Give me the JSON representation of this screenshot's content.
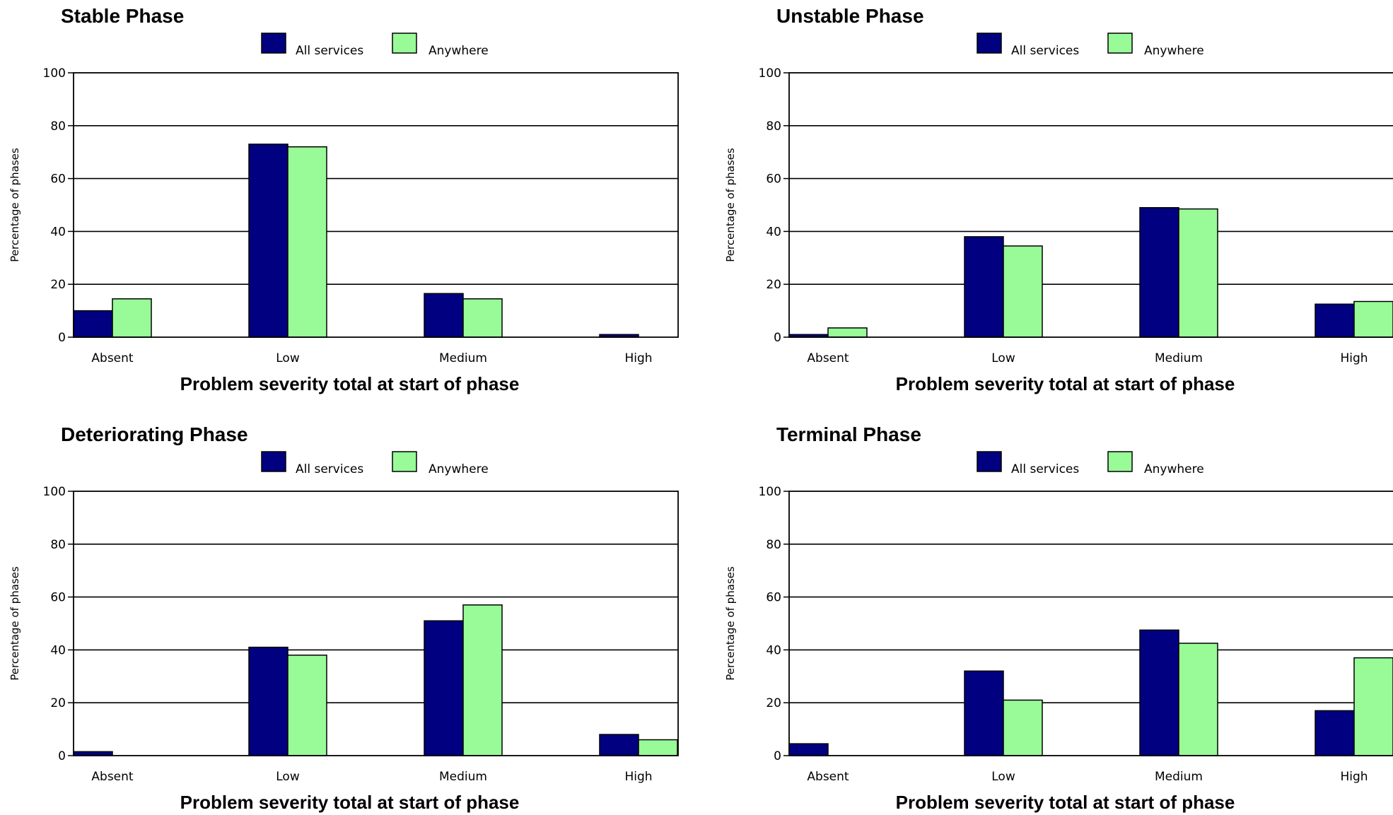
{
  "colors": {
    "all_services": "#000080",
    "anywhere": "#98fb98",
    "gridline": "#000000",
    "bar_outline": "#000000"
  },
  "chart_data": [
    {
      "type": "bar",
      "title": "Stable Phase",
      "xlabel": "Problem severity total at start of phase",
      "ylabel": "Percentage of phases",
      "categories": [
        "Absent",
        "Low",
        "Medium",
        "High"
      ],
      "ylim": [
        0,
        100
      ],
      "yticks": [
        0,
        20,
        40,
        60,
        80,
        100
      ],
      "grid": true,
      "legend_position": "top-center",
      "series": [
        {
          "name": "All services",
          "values": [
            10,
            73,
            16.5,
            1
          ]
        },
        {
          "name": "Anywhere",
          "values": [
            14.5,
            72,
            14.5,
            0
          ]
        }
      ]
    },
    {
      "type": "bar",
      "title": "Unstable Phase",
      "xlabel": "Problem severity total at start of phase",
      "ylabel": "Percentage of phases",
      "categories": [
        "Absent",
        "Low",
        "Medium",
        "High"
      ],
      "ylim": [
        0,
        100
      ],
      "yticks": [
        0,
        20,
        40,
        60,
        80,
        100
      ],
      "grid": true,
      "legend_position": "top-center",
      "series": [
        {
          "name": "All services",
          "values": [
            1,
            38,
            49,
            12.5
          ]
        },
        {
          "name": "Anywhere",
          "values": [
            3.5,
            34.5,
            48.5,
            13.5
          ]
        }
      ]
    },
    {
      "type": "bar",
      "title": "Deteriorating Phase",
      "xlabel": "Problem severity total at start of phase",
      "ylabel": "Percentage of phases",
      "categories": [
        "Absent",
        "Low",
        "Medium",
        "High"
      ],
      "ylim": [
        0,
        100
      ],
      "yticks": [
        0,
        20,
        40,
        60,
        80,
        100
      ],
      "grid": true,
      "legend_position": "top-center",
      "series": [
        {
          "name": "All services",
          "values": [
            1.5,
            41,
            51,
            8
          ]
        },
        {
          "name": "Anywhere",
          "values": [
            0,
            38,
            57,
            6
          ]
        }
      ]
    },
    {
      "type": "bar",
      "title": "Terminal Phase",
      "xlabel": "Problem severity total at start of phase",
      "ylabel": "Percentage of phases",
      "categories": [
        "Absent",
        "Low",
        "Medium",
        "High"
      ],
      "ylim": [
        0,
        100
      ],
      "yticks": [
        0,
        20,
        40,
        60,
        80,
        100
      ],
      "grid": true,
      "legend_position": "top-center",
      "series": [
        {
          "name": "All services",
          "values": [
            4.5,
            32,
            47.5,
            17
          ]
        },
        {
          "name": "Anywhere",
          "values": [
            0,
            21,
            42.5,
            37
          ]
        }
      ]
    }
  ]
}
